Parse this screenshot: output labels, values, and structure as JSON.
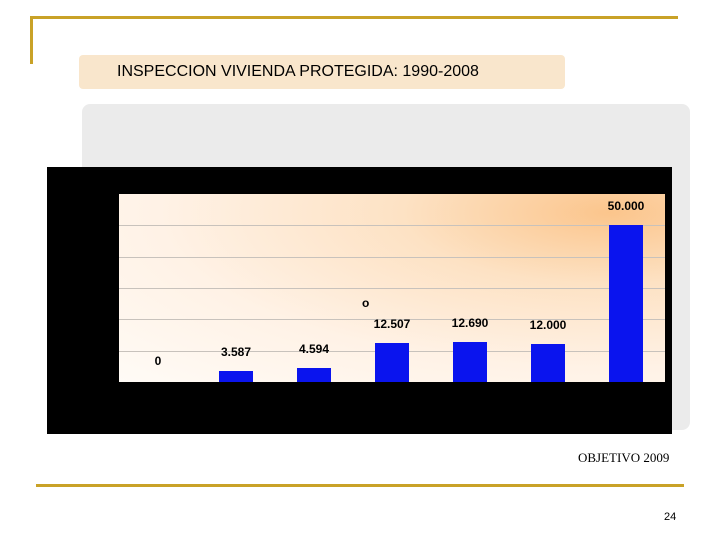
{
  "slide": {
    "title": "INSPECCION VIVIENDA PROTEGIDA: 1990-2008",
    "objective_label": "OBJETIVO 2009",
    "page_number": "24",
    "stray_mark": "o"
  },
  "colors": {
    "accent_rule": "#c9a227",
    "title_box": "#f9e6cc",
    "bar": "#0a14ee",
    "chart_background": "#000000"
  },
  "chart_data": {
    "type": "bar",
    "title": "",
    "xlabel": "",
    "ylabel": "",
    "categories": [
      "",
      "",
      "",
      "",
      "",
      "",
      ""
    ],
    "values": [
      0,
      3587,
      4594,
      12507,
      12690,
      12000,
      50000
    ],
    "value_labels": [
      "0",
      "3.587",
      "4.594",
      "12.507",
      "12.690",
      "12.000",
      "50.000"
    ],
    "ylim": [
      0,
      60000
    ],
    "grid": true,
    "legend": "none"
  }
}
